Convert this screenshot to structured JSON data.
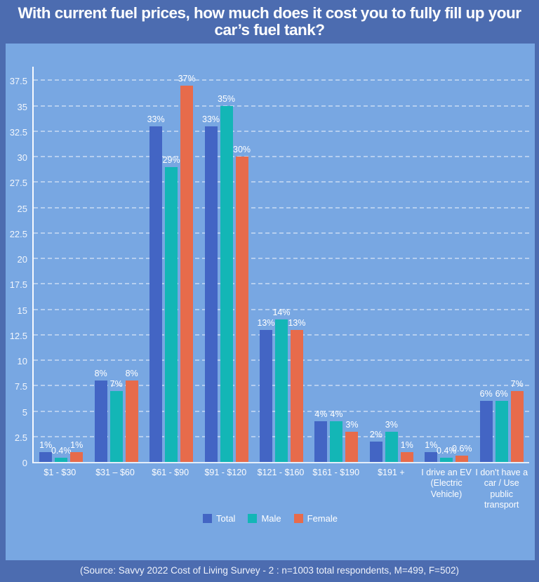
{
  "title": "With current fuel prices, how much does it cost you to fully fill up your car’s fuel tank?",
  "footer": "(Source: Savvy 2022 Cost of Living Survey - 2 : n=1003 total respondents, M=499, F=502)",
  "colors": {
    "background": "#4c6cb0",
    "panel": "#78a7e2",
    "total": "#4365c4",
    "male": "#13b6b6",
    "female": "#e76b4b",
    "text": "#ffffff"
  },
  "chart_data": {
    "type": "bar",
    "categories": [
      "$1 - $30",
      "$31 – $60",
      "$61 - $90",
      "$91 - $120",
      "$121 - $160",
      "$161 - $190",
      "$191 +",
      "I drive an EV (Electric Vehicle)",
      "I don't have a car / Use public transport"
    ],
    "series": [
      {
        "name": "Total",
        "color": "#4365c4",
        "values": [
          1,
          8,
          33,
          33,
          13,
          4,
          2,
          1,
          6
        ],
        "labels": [
          "1%",
          "8%",
          "33%",
          "33%",
          "13%",
          "4%",
          "2%",
          "1%",
          "6%"
        ]
      },
      {
        "name": "Male",
        "color": "#13b6b6",
        "values": [
          0.4,
          7,
          29,
          35,
          14,
          4,
          3,
          0.4,
          6
        ],
        "labels": [
          "0.4%",
          "7%",
          "29%",
          "35%",
          "14%",
          "4%",
          "3%",
          "0.4%",
          "6%"
        ]
      },
      {
        "name": "Female",
        "color": "#e76b4b",
        "values": [
          1,
          8,
          37,
          30,
          13,
          3,
          1,
          0.6,
          7
        ],
        "labels": [
          "1%",
          "8%",
          "37%",
          "30%",
          "13%",
          "3%",
          "1%",
          "0.6%",
          "7%"
        ]
      }
    ],
    "yticks": [
      0,
      2.5,
      5,
      7.5,
      10,
      12.5,
      15,
      17.5,
      20,
      22.5,
      25,
      27.5,
      30,
      32.5,
      35,
      37.5
    ],
    "ylim": [
      0,
      38.8
    ],
    "grid": true,
    "legend_position": "bottom",
    "xlabel": "",
    "ylabel": ""
  }
}
